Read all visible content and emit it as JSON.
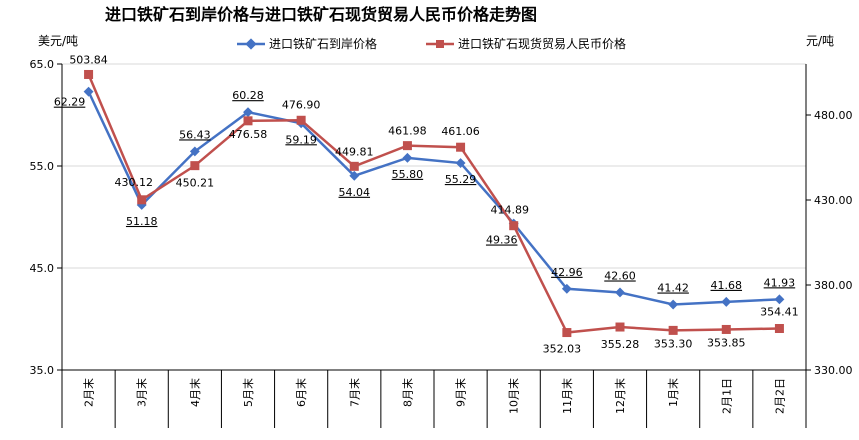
{
  "chart_data": {
    "type": "line",
    "title": "进口铁矿石到岸价格与进口铁矿石现货贸易人民币价格走势图",
    "left_unit": "美元/吨",
    "right_unit": "元/吨",
    "categories": [
      "2月末",
      "3月末",
      "4月末",
      "5月末",
      "6月末",
      "7月末",
      "8月末",
      "9月末",
      "10月末",
      "11月末",
      "12月末",
      "1月末",
      "2月1日",
      "2月2日"
    ],
    "left_axis": {
      "min": 35,
      "max": 65,
      "ticks": [
        "35.0",
        "45.0",
        "55.0",
        "65.0"
      ]
    },
    "right_axis": {
      "min": 330,
      "max": 510,
      "ticks": [
        "330.00",
        "380.00",
        "430.00",
        "480.00"
      ]
    },
    "gridlines": true,
    "legend_position": "top",
    "series": [
      {
        "name": "进口铁矿石到岸价格",
        "axis": "left",
        "color": "#4472C4",
        "marker": "diamond",
        "values": [
          62.29,
          51.18,
          56.43,
          60.28,
          59.19,
          54.04,
          55.8,
          55.29,
          49.36,
          42.96,
          42.6,
          41.42,
          41.68,
          41.93
        ],
        "labels": [
          "62.29",
          "51.18",
          "56.43",
          "60.28",
          "59.19",
          "54.04",
          "55.80",
          "55.29",
          "49.36",
          "42.96",
          "42.60",
          "41.42",
          "41.68",
          "41.93"
        ]
      },
      {
        "name": "进口铁矿石现货贸易人民币价格",
        "axis": "right",
        "color": "#C0504D",
        "marker": "square",
        "values": [
          503.84,
          430.12,
          450.21,
          476.58,
          476.9,
          449.81,
          461.98,
          461.06,
          414.89,
          352.03,
          355.28,
          353.3,
          353.85,
          354.41
        ],
        "labels": [
          "503.84",
          "430.12",
          "450.21",
          "476.58",
          "476.90",
          "449.81",
          "461.98",
          "461.06",
          "414.89",
          "352.03",
          "355.28",
          "353.30",
          "353.85",
          "354.41"
        ]
      }
    ]
  }
}
